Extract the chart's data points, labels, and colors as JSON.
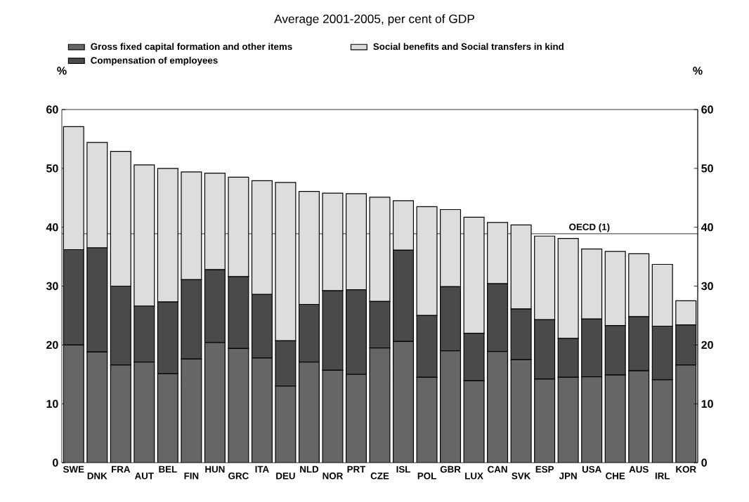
{
  "chart_data": {
    "type": "bar",
    "title": "Average 2001-2005, per cent of GDP",
    "ylabel": "%",
    "y2label": "%",
    "categories": [
      "SWE",
      "DNK",
      "FRA",
      "AUT",
      "BEL",
      "FIN",
      "HUN",
      "GRC",
      "ITA",
      "DEU",
      "NLD",
      "NOR",
      "PRT",
      "CZE",
      "ISL",
      "POL",
      "GBR",
      "LUX",
      "CAN",
      "SVK",
      "ESP",
      "JPN",
      "USA",
      "CHE",
      "AUS",
      "IRL",
      "KOR"
    ],
    "stacked": true,
    "series": [
      {
        "name": "Gross fixed capital formation and other items",
        "color": "#666666",
        "values": [
          20.0,
          18.8,
          16.6,
          17.1,
          15.1,
          17.6,
          20.4,
          19.4,
          17.8,
          13.0,
          17.1,
          15.7,
          15.0,
          19.5,
          20.6,
          14.5,
          19.0,
          13.9,
          18.9,
          17.5,
          14.2,
          14.5,
          14.6,
          14.9,
          15.6,
          14.1,
          16.6
        ]
      },
      {
        "name": "Compensation of employees",
        "color": "#4a4a4a",
        "values": [
          16.2,
          17.7,
          13.4,
          9.5,
          12.2,
          13.5,
          12.4,
          12.2,
          10.8,
          7.7,
          9.8,
          13.5,
          14.4,
          7.9,
          15.5,
          10.5,
          10.9,
          8.1,
          11.5,
          8.6,
          10.1,
          6.6,
          9.8,
          8.4,
          9.2,
          9.1,
          6.8
        ]
      },
      {
        "name": "Social benefits and Social transfers in kind",
        "color": "#dddddd",
        "values": [
          20.9,
          17.9,
          22.9,
          24.0,
          22.7,
          18.3,
          16.4,
          16.9,
          19.3,
          26.9,
          19.2,
          16.6,
          16.3,
          17.7,
          8.4,
          18.5,
          13.1,
          19.7,
          10.4,
          14.3,
          14.2,
          17.0,
          11.9,
          12.6,
          10.7,
          10.5,
          4.1
        ]
      }
    ],
    "ylim": [
      0,
      60
    ],
    "yticks": [
      0,
      10,
      20,
      30,
      40,
      50,
      60
    ],
    "y2lim": [
      0,
      60
    ],
    "y2ticks": [
      0,
      10,
      20,
      30,
      40,
      50,
      60
    ],
    "ref_lines": [
      {
        "axis": "y",
        "value": 38.9,
        "label": "OECD (1)",
        "color": "#000000"
      }
    ],
    "legend": "top",
    "grid": false
  }
}
